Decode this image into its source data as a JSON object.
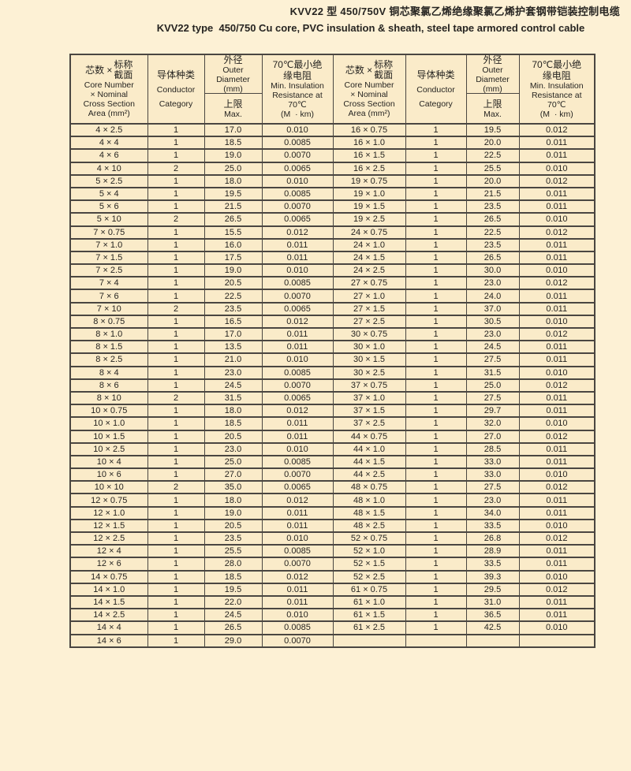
{
  "palette": {
    "page_bg": "#FDF1D5",
    "cell_bg": "#FAEBC9",
    "line_color": "#4A4641",
    "text_color": "#262421"
  },
  "title": {
    "zh": "KVV22 型 450/750V 铜芯聚氯乙烯绝缘聚氯乙烯护套钢带铠装控制电缆",
    "en": "KVV22 type  450/750 Cu core, PVC insulation & sheath, steel tape armored control cable"
  },
  "header": {
    "spec": {
      "zh_prefix": "芯数 ×",
      "zh_stack": [
        "标称",
        "截面"
      ],
      "en": [
        "Core Number",
        "× Nominal",
        "Cross Section",
        "Area (mm²)"
      ]
    },
    "conductor": {
      "zh": "导体种类",
      "en": [
        "Conductor",
        "Category"
      ]
    },
    "outer_diameter": {
      "zh": "外径",
      "en": [
        "Outer",
        "Diameter",
        "(mm)"
      ],
      "sub_zh": "上限",
      "sub_en": "Max."
    },
    "insulation": {
      "zh": [
        "70℃最小绝",
        "缘电阻"
      ],
      "en": [
        "Min. Insulation",
        "Resistance at",
        "70℃",
        "(M  · km)"
      ]
    }
  },
  "rows": [
    [
      "4 × 2.5",
      "1",
      "17.0",
      "0.010",
      "16 × 0.75",
      "1",
      "19.5",
      "0.012"
    ],
    [
      "4 × 4",
      "1",
      "18.5",
      "0.0085",
      "16 × 1.0",
      "1",
      "20.0",
      "0.011"
    ],
    [
      "4 × 6",
      "1",
      "19.0",
      "0.0070",
      "16 × 1.5",
      "1",
      "22.5",
      "0.011"
    ],
    [
      "4 × 10",
      "2",
      "25.0",
      "0.0065",
      "16 × 2.5",
      "1",
      "25.5",
      "0.010"
    ],
    [
      "5 × 2.5",
      "1",
      "18.0",
      "0.010",
      "19 × 0.75",
      "1",
      "20.0",
      "0.012"
    ],
    [
      "5 × 4",
      "1",
      "19.5",
      "0.0085",
      "19 × 1.0",
      "1",
      "21.5",
      "0.011"
    ],
    [
      "5 × 6",
      "1",
      "21.5",
      "0.0070",
      "19 × 1.5",
      "1",
      "23.5",
      "0.011"
    ],
    [
      "5 × 10",
      "2",
      "26.5",
      "0.0065",
      "19 × 2.5",
      "1",
      "26.5",
      "0.010"
    ],
    [
      "7 × 0.75",
      "1",
      "15.5",
      "0.012",
      "24 × 0.75",
      "1",
      "22.5",
      "0.012"
    ],
    [
      "7 × 1.0",
      "1",
      "16.0",
      "0.011",
      "24 × 1.0",
      "1",
      "23.5",
      "0.011"
    ],
    [
      "7 × 1.5",
      "1",
      "17.5",
      "0.011",
      "24 × 1.5",
      "1",
      "26.5",
      "0.011"
    ],
    [
      "7 × 2.5",
      "1",
      "19.0",
      "0.010",
      "24 × 2.5",
      "1",
      "30.0",
      "0.010"
    ],
    [
      "7 × 4",
      "1",
      "20.5",
      "0.0085",
      "27 × 0.75",
      "1",
      "23.0",
      "0.012"
    ],
    [
      "7 × 6",
      "1",
      "22.5",
      "0.0070",
      "27 × 1.0",
      "1",
      "24.0",
      "0.011"
    ],
    [
      "7 × 10",
      "2",
      "23.5",
      "0.0065",
      "27 × 1.5",
      "1",
      "37.0",
      "0.011"
    ],
    [
      "8 × 0.75",
      "1",
      "16.5",
      "0.012",
      "27 × 2.5",
      "1",
      "30.5",
      "0.010"
    ],
    [
      "8 × 1.0",
      "1",
      "17.0",
      "0.011",
      "30 × 0.75",
      "1",
      "23.0",
      "0.012"
    ],
    [
      "8 × 1.5",
      "1",
      "13.5",
      "0.011",
      "30 × 1.0",
      "1",
      "24.5",
      "0.011"
    ],
    [
      "8 × 2.5",
      "1",
      "21.0",
      "0.010",
      "30 × 1.5",
      "1",
      "27.5",
      "0.011"
    ],
    [
      "8 × 4",
      "1",
      "23.0",
      "0.0085",
      "30 × 2.5",
      "1",
      "31.5",
      "0.010"
    ],
    [
      "8 × 6",
      "1",
      "24.5",
      "0.0070",
      "37 × 0.75",
      "1",
      "25.0",
      "0.012"
    ],
    [
      "8 × 10",
      "2",
      "31.5",
      "0.0065",
      "37 × 1.0",
      "1",
      "27.5",
      "0.011"
    ],
    [
      "10 × 0.75",
      "1",
      "18.0",
      "0.012",
      "37 × 1.5",
      "1",
      "29.7",
      "0.011"
    ],
    [
      "10 × 1.0",
      "1",
      "18.5",
      "0.011",
      "37 × 2.5",
      "1",
      "32.0",
      "0.010"
    ],
    [
      "10 × 1.5",
      "1",
      "20.5",
      "0.011",
      "44 × 0.75",
      "1",
      "27.0",
      "0.012"
    ],
    [
      "10 × 2.5",
      "1",
      "23.0",
      "0.010",
      "44 × 1.0",
      "1",
      "28.5",
      "0.011"
    ],
    [
      "10 × 4",
      "1",
      "25.0",
      "0.0085",
      "44 × 1.5",
      "1",
      "33.0",
      "0.011"
    ],
    [
      "10 × 6",
      "1",
      "27.0",
      "0.0070",
      "44 × 2.5",
      "1",
      "33.0",
      "0.010"
    ],
    [
      "10 × 10",
      "2",
      "35.0",
      "0.0065",
      "48 × 0.75",
      "1",
      "27.5",
      "0.012"
    ],
    [
      "12 × 0.75",
      "1",
      "18.0",
      "0.012",
      "48 × 1.0",
      "1",
      "23.0",
      "0.011"
    ],
    [
      "12 × 1.0",
      "1",
      "19.0",
      "0.011",
      "48 × 1.5",
      "1",
      "34.0",
      "0.011"
    ],
    [
      "12 × 1.5",
      "1",
      "20.5",
      "0.011",
      "48 × 2.5",
      "1",
      "33.5",
      "0.010"
    ],
    [
      "12 × 2.5",
      "1",
      "23.5",
      "0.010",
      "52 × 0.75",
      "1",
      "26.8",
      "0.012"
    ],
    [
      "12 × 4",
      "1",
      "25.5",
      "0.0085",
      "52 × 1.0",
      "1",
      "28.9",
      "0.011"
    ],
    [
      "12 × 6",
      "1",
      "28.0",
      "0.0070",
      "52 × 1.5",
      "1",
      "33.5",
      "0.011"
    ],
    [
      "14 × 0.75",
      "1",
      "18.5",
      "0.012",
      "52 × 2.5",
      "1",
      "39.3",
      "0.010"
    ],
    [
      "14 × 1.0",
      "1",
      "19.5",
      "0.011",
      "61 × 0.75",
      "1",
      "29.5",
      "0.012"
    ],
    [
      "14 × 1.5",
      "1",
      "22.0",
      "0.011",
      "61 × 1.0",
      "1",
      "31.0",
      "0.011"
    ],
    [
      "14 × 2.5",
      "1",
      "24.5",
      "0.010",
      "61 × 1.5",
      "1",
      "36.5",
      "0.011"
    ],
    [
      "14 × 4",
      "1",
      "26.5",
      "0.0085",
      "61 × 2.5",
      "1",
      "42.5",
      "0.010"
    ],
    [
      "14 × 6",
      "1",
      "29.0",
      "0.0070",
      "",
      "",
      "",
      ""
    ]
  ]
}
